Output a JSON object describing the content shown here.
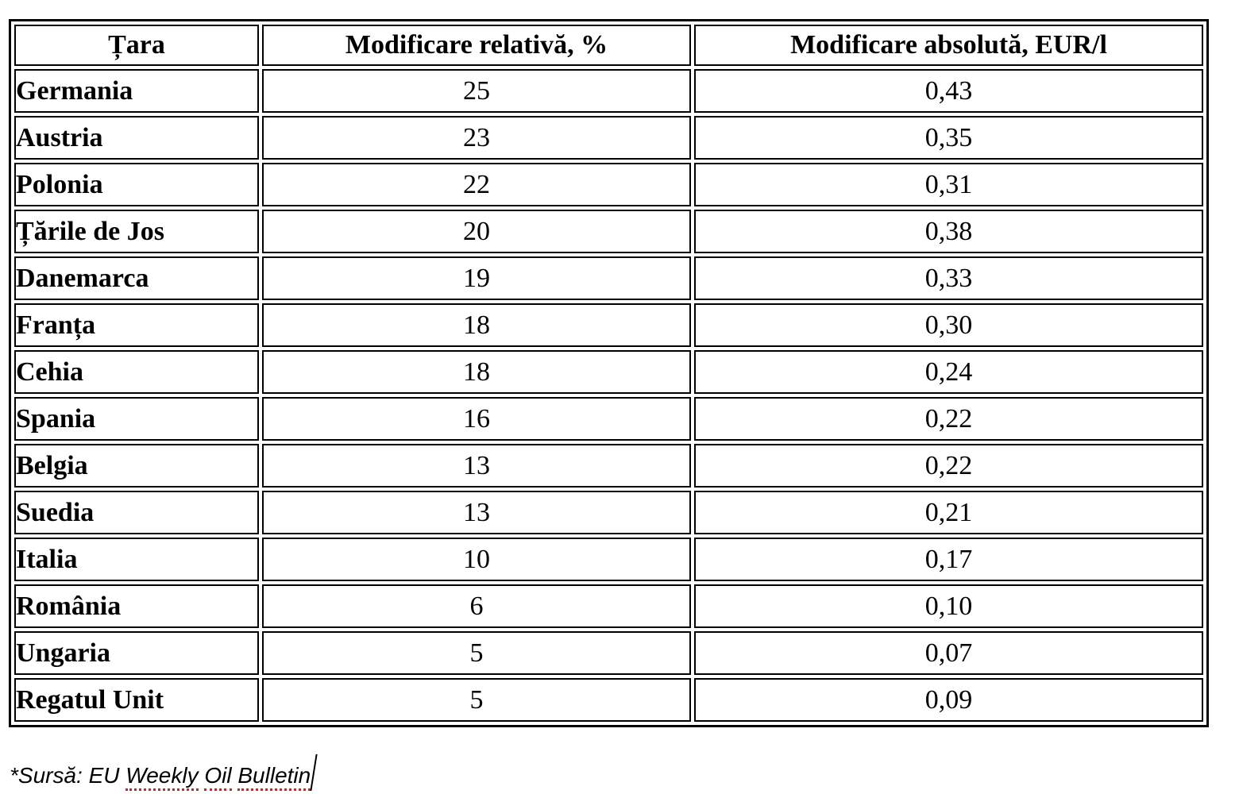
{
  "document": {
    "table": {
      "columns": [
        {
          "key": "country",
          "label": "Țara"
        },
        {
          "key": "relative",
          "label": "Modificare relativă, %"
        },
        {
          "key": "absolute",
          "label": "Modificare absolută, EUR/l"
        }
      ],
      "rows": [
        {
          "country": "Germania",
          "relative": "25",
          "absolute": "0,43"
        },
        {
          "country": "Austria",
          "relative": "23",
          "absolute": "0,35"
        },
        {
          "country": "Polonia",
          "relative": "22",
          "absolute": "0,31"
        },
        {
          "country": "Țările de Jos",
          "relative": "20",
          "absolute": "0,38"
        },
        {
          "country": "Danemarca",
          "relative": "19",
          "absolute": "0,33"
        },
        {
          "country": "Franța",
          "relative": "18",
          "absolute": "0,30"
        },
        {
          "country": "Cehia",
          "relative": "18",
          "absolute": "0,24"
        },
        {
          "country": "Spania",
          "relative": "16",
          "absolute": "0,22"
        },
        {
          "country": "Belgia",
          "relative": "13",
          "absolute": "0,22"
        },
        {
          "country": "Suedia",
          "relative": "13",
          "absolute": "0,21"
        },
        {
          "country": "Italia",
          "relative": "10",
          "absolute": "0,17"
        },
        {
          "country": "România",
          "relative": "6",
          "absolute": "0,10"
        },
        {
          "country": "Ungaria",
          "relative": "5",
          "absolute": "0,07"
        },
        {
          "country": "Regatul Unit",
          "relative": "5",
          "absolute": "0,09"
        }
      ]
    },
    "source_note": {
      "prefix": "*Sursă: EU",
      "flagged_words": [
        "Weekly",
        "Oil",
        "Bulletin"
      ]
    },
    "colors": {
      "text": "#000000",
      "table_border": "#000000",
      "spellcheck_underline": "#c9271e",
      "background": "#ffffff"
    }
  }
}
